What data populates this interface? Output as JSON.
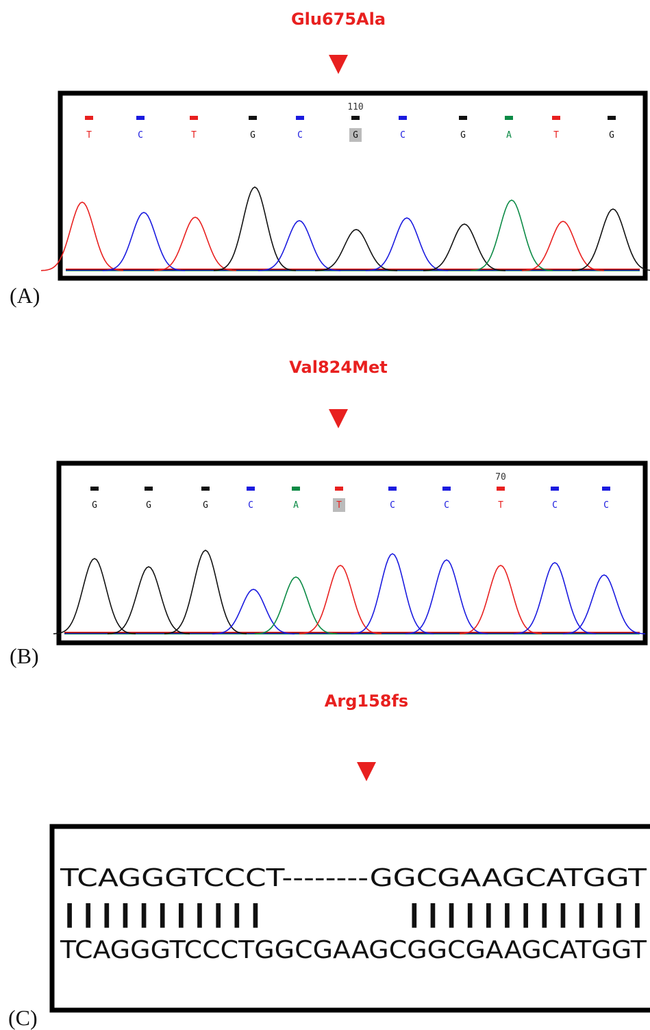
{
  "panels": [
    {
      "label": "(A)",
      "mutation": "Glu675Ala",
      "position": "110",
      "position_base": 5,
      "highlighted_base": 5,
      "bases": [
        "T",
        "C",
        "T",
        "G",
        "C",
        "G",
        "C",
        "G",
        "A",
        "T",
        "G"
      ]
    },
    {
      "label": "(B)",
      "mutation": "Val824Met",
      "position": "70",
      "position_base": 8,
      "highlighted_base": 5,
      "bases": [
        "G",
        "G",
        "G",
        "C",
        "A",
        "T",
        "C",
        "C",
        "T",
        "C",
        "C"
      ]
    }
  ],
  "base_colors": {
    "A": "#0b8a45",
    "C": "#1a1adf",
    "G": "#111111",
    "T": "#e8201f"
  },
  "alignment": {
    "label": "(C)",
    "mutation": "Arg158fs",
    "query": "TCAGGGTCCCT--------GGCGAAGCATGGT",
    "match": "|||||||||||        |||||||||||||",
    "subject": "TCAGGGTCCCTGGCGAAGCGGCGAAGCATGGT"
  }
}
